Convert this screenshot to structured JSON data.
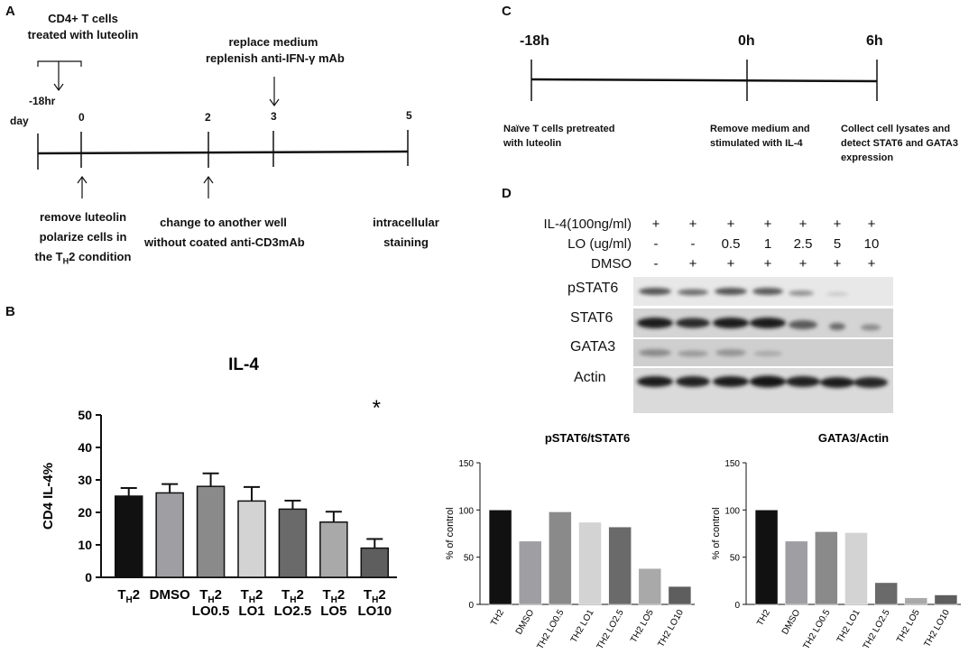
{
  "panels": {
    "a": "A",
    "b": "B",
    "c": "C",
    "d": "D"
  },
  "panel_a": {
    "top_label": [
      "CD4+ T cells",
      "treated with luteolin"
    ],
    "minus18": "-18hr",
    "day": "day",
    "ticks": [
      "0",
      "2",
      "3",
      "5"
    ],
    "replace": [
      "replace medium",
      "replenish anti-IFN-γ mAb"
    ],
    "remove": [
      "remove luteolin",
      "polarize cells in"
    ],
    "remove_th": "the T",
    "remove_sub": "H",
    "remove_end": "2 condition",
    "change": [
      "change to another well",
      "without coated anti-CD3mAb"
    ],
    "intracellular": [
      "intracellular",
      "staining"
    ]
  },
  "panel_c": {
    "times": [
      "-18h",
      "0h",
      "6h"
    ],
    "naive": [
      "Naïve T cells pretreated",
      "with luteolin"
    ],
    "remove_medium": [
      "Remove medium and",
      "stimulated with IL-4"
    ],
    "collect": [
      "Collect cell lysates and",
      "detect STAT6 and GATA3",
      "expression"
    ]
  },
  "panel_d": {
    "treatments": [
      {
        "label": "IL-4(100ng/ml)",
        "values": [
          "+",
          "+",
          "+",
          "+",
          "+",
          "+",
          "+"
        ]
      },
      {
        "label": "LO (ug/ml)",
        "values": [
          "-",
          "-",
          "0.5",
          "1",
          "2.5",
          "5",
          "10"
        ]
      },
      {
        "label": "DMSO",
        "values": [
          "-",
          "+",
          "+",
          "+",
          "+",
          "+",
          "+"
        ]
      }
    ],
    "blots": [
      "pSTAT6",
      "STAT6",
      "GATA3",
      "Actin"
    ]
  },
  "chart_data": [
    {
      "type": "bar",
      "title": "IL-4",
      "ylabel": "CD4 IL-4%",
      "ylim": [
        0,
        50
      ],
      "yticks": [
        0,
        10,
        20,
        30,
        40,
        50
      ],
      "categories": [
        {
          "main": "T",
          "sub": "H",
          "tail": "2",
          "line2": ""
        },
        {
          "main": "DMSO",
          "sub": "",
          "tail": "",
          "line2": ""
        },
        {
          "main": "T",
          "sub": "H",
          "tail": "2",
          "line2": "LO0.5"
        },
        {
          "main": "T",
          "sub": "H",
          "tail": "2",
          "line2": "LO1"
        },
        {
          "main": "T",
          "sub": "H",
          "tail": "2",
          "line2": "LO2.5"
        },
        {
          "main": "T",
          "sub": "H",
          "tail": "2",
          "line2": "LO5"
        },
        {
          "main": "T",
          "sub": "H",
          "tail": "2",
          "line2": "LO10"
        }
      ],
      "values": [
        25,
        26,
        28,
        23.5,
        21,
        17,
        9
      ],
      "errors": [
        2.5,
        2.7,
        4,
        4.3,
        2.6,
        3.2,
        2.8
      ],
      "colors": [
        "#111111",
        "#9e9ea3",
        "#8a8a8a",
        "#d3d3d3",
        "#6a6a6a",
        "#a9a9a9",
        "#5e5e5e"
      ],
      "annotation": "*",
      "grid": false
    },
    {
      "type": "bar",
      "title": "pSTAT6/tSTAT6",
      "ylabel": "% of control",
      "ylim": [
        0,
        150
      ],
      "yticks": [
        0,
        50,
        100,
        150
      ],
      "categories": [
        "TH2",
        "DMSO",
        "TH2 LO0.5",
        "TH2 LO1",
        "TH2 LO2.5",
        "TH2 LO5",
        "TH2 LO10"
      ],
      "values": [
        100,
        67,
        98,
        87,
        82,
        38,
        19
      ],
      "colors": [
        "#111111",
        "#9e9ea3",
        "#8a8a8a",
        "#d3d3d3",
        "#6a6a6a",
        "#a9a9a9",
        "#5e5e5e"
      ],
      "grid": false
    },
    {
      "type": "bar",
      "title": "GATA3/Actin",
      "ylabel": "% of control",
      "ylim": [
        0,
        150
      ],
      "yticks": [
        0,
        50,
        100,
        150
      ],
      "categories": [
        "TH2",
        "DMSO",
        "TH2 LO0.5",
        "TH2 LO1",
        "TH2 LO2.5",
        "TH2 LO5",
        "TH2 LO10"
      ],
      "values": [
        100,
        67,
        77,
        76,
        23,
        7,
        10
      ],
      "colors": [
        "#111111",
        "#9e9ea3",
        "#8a8a8a",
        "#d3d3d3",
        "#6a6a6a",
        "#a9a9a9",
        "#5e5e5e"
      ],
      "grid": false
    }
  ]
}
